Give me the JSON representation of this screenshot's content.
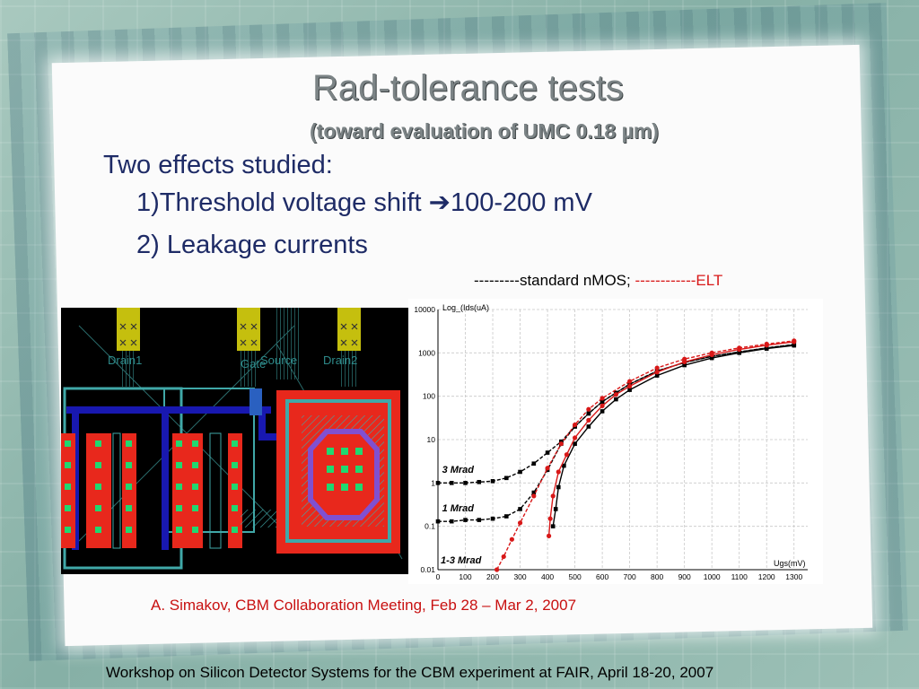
{
  "slide": {
    "title": "Rad-tolerance tests",
    "subtitle": "(toward evaluation of UMC 0.18 µm)",
    "bullet1": "Two effects studied:",
    "bullet2_prefix": "1)Threshold voltage shift ",
    "bullet2_arrow": "➔",
    "bullet2_value": "100-200 mV",
    "bullet3": "2) Leakage currents",
    "legend_black": "---------standard nMOS; ",
    "legend_red": "------------ELT",
    "credit": "A. Simakov, CBM Collaboration Meeting, Feb 28 – Mar 2, 2007",
    "footer": "Workshop on Silicon Detector Systems for the CBM experiment at FAIR, April 18-20, 2007"
  },
  "layout_labels": {
    "drain1": "Drain1",
    "gate": "Gate",
    "source": "Source",
    "drain2": "Drain2"
  },
  "colors": {
    "title": "#7b8385",
    "bullet": "#1e2b66",
    "standard": "#000000",
    "elt": "#d81818",
    "layout_red": "#e8281c",
    "layout_cyan": "#40a8a8",
    "layout_blue": "#1818b0",
    "layout_green": "#20d870",
    "layout_yellow": "#e8e010"
  },
  "chart_data": {
    "type": "line",
    "ylabel": "Log_(Ids(uA)",
    "xlabel": "Ugs(mV)",
    "y_scale": "log",
    "xlim": [
      0,
      1350
    ],
    "ylim": [
      0.01,
      10000
    ],
    "x_ticks": [
      "0",
      "100",
      "200",
      "300",
      "400",
      "500",
      "600",
      "700",
      "800",
      "900",
      "1000",
      "1100",
      "1200",
      "1300"
    ],
    "y_ticks": [
      {
        "v": 0.01,
        "label": "0.01"
      },
      {
        "v": 0.1,
        "label": "0.1"
      },
      {
        "v": 1,
        "label": "1"
      },
      {
        "v": 10,
        "label": "10"
      },
      {
        "v": 100,
        "label": "100"
      },
      {
        "v": 1000,
        "label": "1000"
      },
      {
        "v": 10000,
        "label": "10000"
      }
    ],
    "grid": true,
    "annotations": [
      {
        "text": "3 Mrad",
        "x": 15,
        "y": 1.7
      },
      {
        "text": "1 Mrad",
        "x": 15,
        "y": 0.22
      },
      {
        "text": "1-3 Mrad",
        "x": 10,
        "y": 0.014
      }
    ],
    "series": [
      {
        "color": "#000000",
        "style": "dashed",
        "marker": "square",
        "points": [
          [
            0,
            1
          ],
          [
            50,
            1
          ],
          [
            100,
            1
          ],
          [
            150,
            1.05
          ],
          [
            200,
            1.1
          ],
          [
            250,
            1.3
          ],
          [
            300,
            1.8
          ],
          [
            350,
            2.8
          ],
          [
            400,
            5
          ],
          [
            450,
            9
          ],
          [
            500,
            20
          ],
          [
            550,
            40
          ],
          [
            600,
            75
          ],
          [
            650,
            120
          ],
          [
            700,
            190
          ],
          [
            800,
            380
          ],
          [
            900,
            600
          ],
          [
            1000,
            830
          ],
          [
            1100,
            1050
          ],
          [
            1200,
            1300
          ],
          [
            1300,
            1550
          ]
        ]
      },
      {
        "color": "#000000",
        "style": "dashed",
        "marker": "square",
        "points": [
          [
            0,
            0.13
          ],
          [
            50,
            0.13
          ],
          [
            100,
            0.14
          ],
          [
            150,
            0.14
          ],
          [
            200,
            0.15
          ],
          [
            250,
            0.17
          ],
          [
            300,
            0.25
          ],
          [
            350,
            0.6
          ],
          [
            400,
            2
          ],
          [
            450,
            8
          ],
          [
            500,
            20
          ],
          [
            550,
            40
          ],
          [
            600,
            75
          ],
          [
            700,
            190
          ],
          [
            800,
            380
          ],
          [
            900,
            600
          ],
          [
            1000,
            830
          ],
          [
            1100,
            1050
          ],
          [
            1200,
            1300
          ],
          [
            1300,
            1550
          ]
        ]
      },
      {
        "color": "#000000",
        "style": "solid",
        "marker": "square",
        "points": [
          [
            420,
            0.1
          ],
          [
            430,
            0.25
          ],
          [
            440,
            0.8
          ],
          [
            460,
            2.5
          ],
          [
            500,
            8
          ],
          [
            550,
            20
          ],
          [
            600,
            45
          ],
          [
            650,
            85
          ],
          [
            700,
            140
          ],
          [
            800,
            300
          ],
          [
            900,
            520
          ],
          [
            1000,
            760
          ],
          [
            1100,
            1000
          ],
          [
            1200,
            1250
          ],
          [
            1300,
            1480
          ]
        ]
      },
      {
        "color": "#d81818",
        "style": "dashed",
        "marker": "circle",
        "points": [
          [
            215,
            0.01
          ],
          [
            240,
            0.02
          ],
          [
            270,
            0.05
          ],
          [
            300,
            0.12
          ],
          [
            350,
            0.5
          ],
          [
            400,
            2.2
          ],
          [
            450,
            8
          ],
          [
            500,
            22
          ],
          [
            550,
            50
          ],
          [
            600,
            90
          ],
          [
            700,
            220
          ],
          [
            800,
            450
          ],
          [
            900,
            720
          ],
          [
            1000,
            1000
          ],
          [
            1100,
            1300
          ],
          [
            1200,
            1600
          ],
          [
            1300,
            1900
          ]
        ]
      },
      {
        "color": "#d81818",
        "style": "solid",
        "marker": "circle",
        "points": [
          [
            405,
            0.06
          ],
          [
            410,
            0.15
          ],
          [
            420,
            0.5
          ],
          [
            440,
            1.8
          ],
          [
            470,
            4.5
          ],
          [
            500,
            11
          ],
          [
            550,
            28
          ],
          [
            600,
            60
          ],
          [
            650,
            110
          ],
          [
            700,
            170
          ],
          [
            800,
            360
          ],
          [
            900,
            620
          ],
          [
            1000,
            900
          ],
          [
            1100,
            1200
          ],
          [
            1200,
            1500
          ],
          [
            1300,
            1800
          ]
        ]
      }
    ]
  }
}
